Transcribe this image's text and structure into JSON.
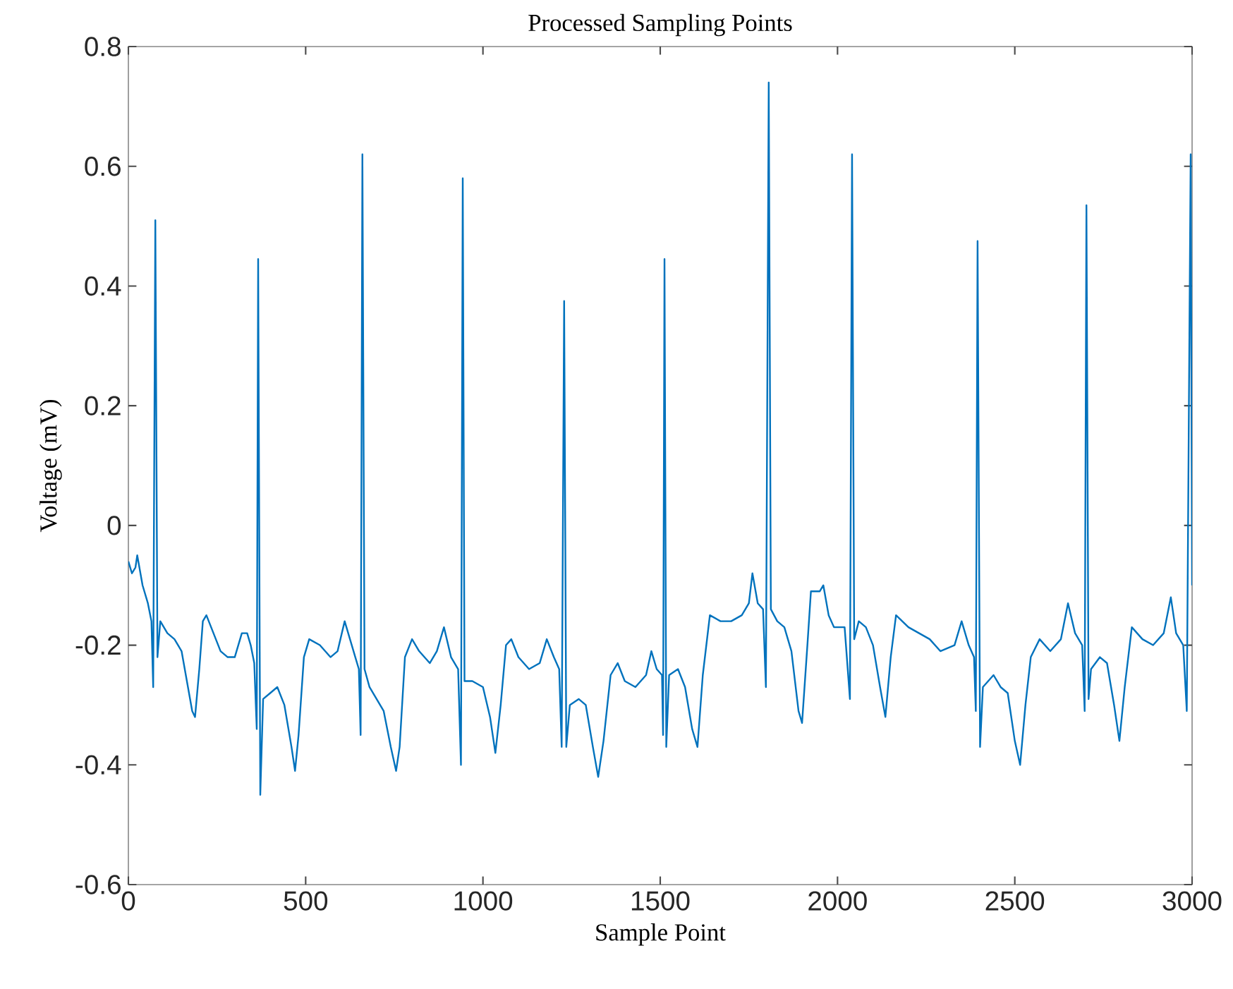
{
  "chart_data": {
    "type": "line",
    "title": "Processed Sampling Points",
    "xlabel": "Sample Point",
    "ylabel": "Voltage (mV)",
    "color": "#0072bd",
    "xlim": [
      0,
      3000
    ],
    "ylim": [
      -0.6,
      0.8
    ],
    "xticks": [
      0,
      500,
      1000,
      1500,
      2000,
      2500,
      3000
    ],
    "yticks": [
      -0.6,
      -0.4,
      -0.2,
      0,
      0.2,
      0.4,
      0.6,
      0.8
    ],
    "x": [
      0,
      10,
      20,
      25,
      40,
      55,
      65,
      70,
      76,
      82,
      90,
      110,
      130,
      150,
      165,
      180,
      188,
      200,
      210,
      220,
      240,
      260,
      280,
      300,
      320,
      335,
      345,
      355,
      362,
      366,
      372,
      380,
      400,
      420,
      440,
      460,
      470,
      480,
      495,
      510,
      540,
      570,
      590,
      610,
      625,
      640,
      650,
      655,
      660,
      666,
      680,
      700,
      720,
      740,
      755,
      765,
      780,
      800,
      820,
      850,
      870,
      890,
      910,
      930,
      938,
      943,
      948,
      970,
      1000,
      1020,
      1035,
      1050,
      1065,
      1080,
      1100,
      1130,
      1160,
      1180,
      1200,
      1215,
      1222,
      1229,
      1235,
      1245,
      1270,
      1290,
      1310,
      1325,
      1340,
      1360,
      1380,
      1400,
      1430,
      1460,
      1475,
      1490,
      1505,
      1508,
      1512,
      1517,
      1525,
      1550,
      1570,
      1590,
      1605,
      1620,
      1640,
      1670,
      1700,
      1730,
      1750,
      1760,
      1775,
      1790,
      1798,
      1806,
      1812,
      1830,
      1850,
      1870,
      1890,
      1900,
      1915,
      1925,
      1950,
      1960,
      1975,
      1990,
      2020,
      2035,
      2041,
      2047,
      2060,
      2080,
      2100,
      2120,
      2135,
      2150,
      2165,
      2200,
      2230,
      2260,
      2290,
      2330,
      2350,
      2370,
      2385,
      2390,
      2395,
      2402,
      2410,
      2440,
      2460,
      2480,
      2500,
      2515,
      2530,
      2545,
      2570,
      2600,
      2630,
      2650,
      2670,
      2690,
      2697,
      2702,
      2708,
      2715,
      2740,
      2760,
      2780,
      2795,
      2810,
      2830,
      2860,
      2890,
      2920,
      2940,
      2955,
      2975,
      2985,
      2996,
      3000
    ],
    "values": [
      -0.06,
      -0.08,
      -0.07,
      -0.05,
      -0.1,
      -0.13,
      -0.16,
      -0.27,
      0.51,
      -0.22,
      -0.16,
      -0.18,
      -0.19,
      -0.21,
      -0.26,
      -0.31,
      -0.32,
      -0.24,
      -0.16,
      -0.15,
      -0.18,
      -0.21,
      -0.22,
      -0.22,
      -0.18,
      -0.18,
      -0.2,
      -0.23,
      -0.34,
      0.445,
      -0.45,
      -0.29,
      -0.28,
      -0.27,
      -0.3,
      -0.37,
      -0.41,
      -0.35,
      -0.22,
      -0.19,
      -0.2,
      -0.22,
      -0.21,
      -0.16,
      -0.19,
      -0.22,
      -0.24,
      -0.35,
      0.62,
      -0.24,
      -0.27,
      -0.29,
      -0.31,
      -0.37,
      -0.41,
      -0.37,
      -0.22,
      -0.19,
      -0.21,
      -0.23,
      -0.21,
      -0.17,
      -0.22,
      -0.24,
      -0.4,
      0.58,
      -0.26,
      -0.26,
      -0.27,
      -0.32,
      -0.38,
      -0.3,
      -0.2,
      -0.19,
      -0.22,
      -0.24,
      -0.23,
      -0.19,
      -0.22,
      -0.24,
      -0.37,
      0.375,
      -0.37,
      -0.3,
      -0.29,
      -0.3,
      -0.37,
      -0.42,
      -0.36,
      -0.25,
      -0.23,
      -0.26,
      -0.27,
      -0.25,
      -0.21,
      -0.24,
      -0.25,
      -0.35,
      0.445,
      -0.37,
      -0.25,
      -0.24,
      -0.27,
      -0.34,
      -0.37,
      -0.25,
      -0.15,
      -0.16,
      -0.16,
      -0.15,
      -0.13,
      -0.08,
      -0.13,
      -0.14,
      -0.27,
      0.74,
      -0.14,
      -0.16,
      -0.17,
      -0.21,
      -0.31,
      -0.33,
      -0.2,
      -0.11,
      -0.11,
      -0.1,
      -0.15,
      -0.17,
      -0.17,
      -0.29,
      0.62,
      -0.19,
      -0.16,
      -0.17,
      -0.2,
      -0.27,
      -0.32,
      -0.22,
      -0.15,
      -0.17,
      -0.18,
      -0.19,
      -0.21,
      -0.2,
      -0.16,
      -0.2,
      -0.22,
      -0.31,
      0.475,
      -0.37,
      -0.27,
      -0.25,
      -0.27,
      -0.28,
      -0.36,
      -0.4,
      -0.3,
      -0.22,
      -0.19,
      -0.21,
      -0.19,
      -0.13,
      -0.18,
      -0.2,
      -0.31,
      0.535,
      -0.29,
      -0.24,
      -0.22,
      -0.23,
      -0.3,
      -0.36,
      -0.27,
      -0.17,
      -0.19,
      -0.2,
      -0.18,
      -0.12,
      -0.18,
      -0.2,
      -0.31,
      0.62,
      -0.1
    ]
  }
}
